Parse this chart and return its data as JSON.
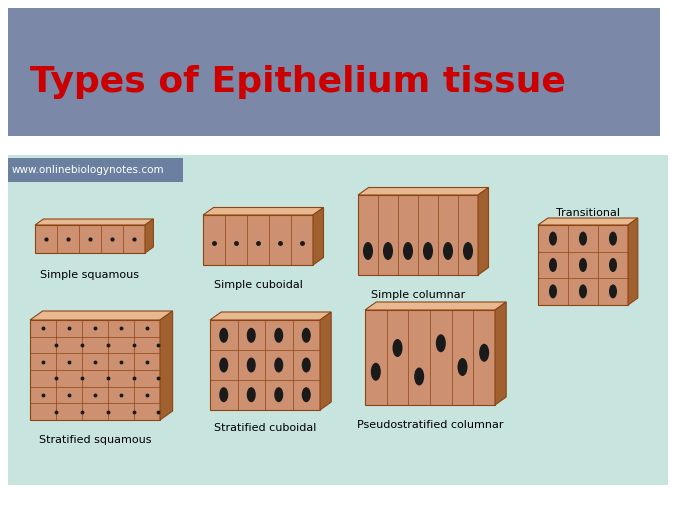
{
  "title": "Types of Epithelium tissue",
  "title_color": "#cc0000",
  "title_bg": "#7b88a8",
  "title_fontsize": 26,
  "watermark": "www.onlinebiologynotes.com",
  "watermark_bg": "#6b7fa0",
  "watermark_color": "white",
  "watermark_fontsize": 7.5,
  "bg_color": "#ffffff",
  "panel_bg": "#c8e4df",
  "tissue_color": "#cd9070",
  "tissue_light": "#e8b890",
  "tissue_top": "#dba878",
  "tissue_edge": "#8b4513",
  "tissue_dark": "#a06030",
  "nucleus_color": "#1a1a1a",
  "label_fontsize": 8,
  "labels": [
    "Simple squamous",
    "Simple cuboidal",
    "Simple columnar",
    "Transitional",
    "Stratified squamous",
    "Stratified cuboidal",
    "Pseudostratified columnar"
  ]
}
